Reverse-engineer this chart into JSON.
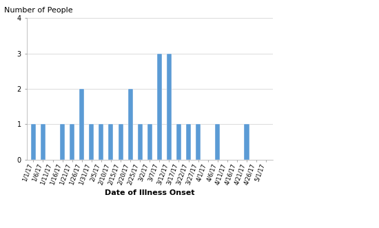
{
  "dates": [
    "1/1/17",
    "1/6/17",
    "1/11/17",
    "1/16/17",
    "1/21/17",
    "1/26/17",
    "1/31/17",
    "2/5/17",
    "2/10/17",
    "2/15/17",
    "2/20/17",
    "2/25/17",
    "3/2/17",
    "3/7/17",
    "3/12/17",
    "3/17/17",
    "3/22/17",
    "3/27/17",
    "4/1/17",
    "4/6/17",
    "4/11/17",
    "4/16/17",
    "4/21/17",
    "4/26/17",
    "5/1/17"
  ],
  "values": [
    1,
    1,
    0,
    1,
    1,
    2,
    1,
    1,
    1,
    1,
    2,
    1,
    1,
    3,
    3,
    1,
    1,
    1,
    0,
    1,
    0,
    0,
    1,
    0,
    0
  ],
  "bar_color": "#5b9bd5",
  "ylabel": "Number of People",
  "xlabel": "Date of Illness Onset",
  "ylim": [
    0,
    4
  ],
  "yticks": [
    0,
    1,
    2,
    3,
    4
  ],
  "background_color": "#ffffff",
  "ylabel_fontsize": 8,
  "xlabel_fontsize": 8,
  "tick_fontsize": 6,
  "bar_width": 0.5
}
